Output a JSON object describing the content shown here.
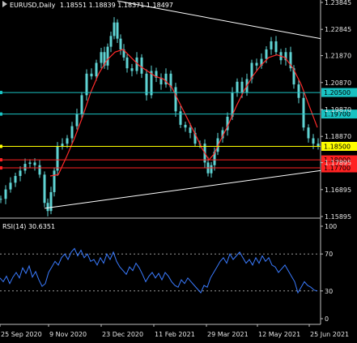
{
  "header": {
    "symbol_tf": "EURUSD,Daily",
    "ohlc": "1.18551 1.18839 1.18371 1.18497"
  },
  "colors": {
    "background": "#000000",
    "candle": "#5fd3d3",
    "ma": "#ff2a2a",
    "trendline": "#ffffff",
    "cyan_level": "#19c2c2",
    "yellow_level": "#ffff00",
    "red_level": "#ff2222",
    "rsi_line": "#3a7bff",
    "axis_text": "#e6e6e6",
    "separator": "#bfbfbf"
  },
  "chart_data": [
    {
      "type": "candlestick",
      "symbol": "EURUSD",
      "timeframe": "Daily",
      "x": [
        "25 Sep 2020",
        "9 Nov 2020",
        "23 Dec 2020",
        "11 Feb 2021",
        "29 Mar 2021",
        "12 May 2021",
        "25 Jun 2021"
      ],
      "y_ticks": [
        "1.23845",
        "1.22845",
        "1.21870",
        "1.20870",
        "1.19870",
        "1.18870",
        "1.17895",
        "1.16895",
        "1.15895"
      ],
      "ylim": [
        1.15895,
        1.23845
      ],
      "close_path": [
        [
          0,
          1.1655
        ],
        [
          6,
          1.169
        ],
        [
          12,
          1.1715
        ],
        [
          18,
          1.174
        ],
        [
          24,
          1.176
        ],
        [
          30,
          1.1785
        ],
        [
          36,
          1.179
        ],
        [
          42,
          1.178
        ],
        [
          48,
          1.1745
        ],
        [
          54,
          1.164
        ],
        [
          58,
          1.161
        ],
        [
          62,
          1.168
        ],
        [
          66,
          1.176
        ],
        [
          70,
          1.185
        ],
        [
          76,
          1.186
        ],
        [
          82,
          1.188
        ],
        [
          88,
          1.1925
        ],
        [
          94,
          1.197
        ],
        [
          100,
          1.204
        ],
        [
          106,
          1.212
        ],
        [
          112,
          1.211
        ],
        [
          118,
          1.216
        ],
        [
          124,
          1.22
        ],
        [
          128,
          1.215
        ],
        [
          132,
          1.222
        ],
        [
          136,
          1.226
        ],
        [
          140,
          1.231
        ],
        [
          144,
          1.225
        ],
        [
          148,
          1.221
        ],
        [
          152,
          1.218
        ],
        [
          156,
          1.214
        ],
        [
          162,
          1.213
        ],
        [
          168,
          1.218
        ],
        [
          174,
          1.212
        ],
        [
          180,
          1.204
        ],
        [
          186,
          1.213
        ],
        [
          192,
          1.2105
        ],
        [
          198,
          1.208
        ],
        [
          204,
          1.212
        ],
        [
          210,
          1.207
        ],
        [
          216,
          1.198
        ],
        [
          222,
          1.193
        ],
        [
          228,
          1.192
        ],
        [
          234,
          1.19
        ],
        [
          240,
          1.186
        ],
        [
          246,
          1.186
        ],
        [
          252,
          1.179
        ],
        [
          256,
          1.175
        ],
        [
          260,
          1.178
        ],
        [
          264,
          1.183
        ],
        [
          268,
          1.188
        ],
        [
          274,
          1.191
        ],
        [
          280,
          1.196
        ],
        [
          286,
          1.205
        ],
        [
          292,
          1.209
        ],
        [
          298,
          1.205
        ],
        [
          304,
          1.21
        ],
        [
          310,
          1.216
        ],
        [
          316,
          1.215
        ],
        [
          322,
          1.2175
        ],
        [
          328,
          1.221
        ],
        [
          334,
          1.224
        ],
        [
          340,
          1.22
        ],
        [
          346,
          1.217
        ],
        [
          352,
          1.22
        ],
        [
          358,
          1.214
        ],
        [
          362,
          1.208
        ],
        [
          368,
          1.203
        ],
        [
          374,
          1.192
        ],
        [
          380,
          1.188
        ],
        [
          386,
          1.186
        ],
        [
          392,
          1.185
        ]
      ],
      "ma_path": [
        [
          62,
          1.174
        ],
        [
          72,
          1.1745
        ],
        [
          82,
          1.181
        ],
        [
          92,
          1.188
        ],
        [
          102,
          1.196
        ],
        [
          112,
          1.205
        ],
        [
          122,
          1.212
        ],
        [
          132,
          1.217
        ],
        [
          142,
          1.22
        ],
        [
          152,
          1.221
        ],
        [
          162,
          1.218
        ],
        [
          172,
          1.215
        ],
        [
          182,
          1.213
        ],
        [
          192,
          1.211
        ],
        [
          202,
          1.21
        ],
        [
          212,
          1.207
        ],
        [
          222,
          1.201
        ],
        [
          232,
          1.195
        ],
        [
          242,
          1.189
        ],
        [
          250,
          1.184
        ],
        [
          258,
          1.18
        ],
        [
          264,
          1.182
        ],
        [
          272,
          1.187
        ],
        [
          282,
          1.193
        ],
        [
          292,
          1.2
        ],
        [
          302,
          1.206
        ],
        [
          312,
          1.211
        ],
        [
          322,
          1.215
        ],
        [
          332,
          1.218
        ],
        [
          342,
          1.219
        ],
        [
          352,
          1.218
        ],
        [
          362,
          1.214
        ],
        [
          372,
          1.208
        ],
        [
          382,
          1.2
        ],
        [
          392,
          1.192
        ]
      ],
      "trendlines": [
        {
          "name": "resistance",
          "from": [
            145,
            1.239
          ],
          "to": [
            396,
            1.225
          ]
        },
        {
          "name": "support",
          "from": [
            55,
            1.162
          ],
          "to": [
            396,
            1.176
          ]
        }
      ],
      "levels": [
        {
          "label": "1.20500",
          "value": 1.205,
          "color": "#19c2c2"
        },
        {
          "label": "1.19700",
          "value": 1.197,
          "color": "#19c2c2"
        },
        {
          "label": "1.18500",
          "value": 1.185,
          "color": "#ffff00"
        },
        {
          "label": "1.18000",
          "value": 1.18,
          "color": "#ff2222"
        },
        {
          "label": "1.17700",
          "value": 1.177,
          "color": "#ff2222"
        }
      ]
    },
    {
      "type": "line",
      "title": "RSI(14) 30.6351",
      "y_ticks": [
        "100",
        "70",
        "30",
        "0"
      ],
      "ylim": [
        0,
        100
      ],
      "levels": [
        70,
        30
      ],
      "series": [
        {
          "values": [
            [
              0,
              44
            ],
            [
              4,
              40
            ],
            [
              8,
              46
            ],
            [
              12,
              38
            ],
            [
              16,
              45
            ],
            [
              20,
              50
            ],
            [
              24,
              44
            ],
            [
              28,
              55
            ],
            [
              32,
              49
            ],
            [
              36,
              57
            ],
            [
              40,
              45
            ],
            [
              44,
              51
            ],
            [
              48,
              42
            ],
            [
              52,
              35
            ],
            [
              56,
              38
            ],
            [
              60,
              50
            ],
            [
              64,
              56
            ],
            [
              68,
              62
            ],
            [
              72,
              58
            ],
            [
              76,
              66
            ],
            [
              80,
              70
            ],
            [
              84,
              64
            ],
            [
              88,
              72
            ],
            [
              92,
              76
            ],
            [
              96,
              68
            ],
            [
              100,
              74
            ],
            [
              104,
              66
            ],
            [
              108,
              70
            ],
            [
              112,
              62
            ],
            [
              116,
              64
            ],
            [
              120,
              58
            ],
            [
              124,
              66
            ],
            [
              128,
              60
            ],
            [
              132,
              70
            ],
            [
              136,
              64
            ],
            [
              140,
              72
            ],
            [
              144,
              62
            ],
            [
              148,
              56
            ],
            [
              152,
              52
            ],
            [
              156,
              48
            ],
            [
              160,
              56
            ],
            [
              164,
              52
            ],
            [
              168,
              60
            ],
            [
              172,
              55
            ],
            [
              176,
              48
            ],
            [
              180,
              40
            ],
            [
              184,
              46
            ],
            [
              188,
              50
            ],
            [
              192,
              44
            ],
            [
              196,
              49
            ],
            [
              200,
              42
            ],
            [
              204,
              50
            ],
            [
              208,
              46
            ],
            [
              212,
              40
            ],
            [
              216,
              36
            ],
            [
              220,
              34
            ],
            [
              224,
              42
            ],
            [
              228,
              38
            ],
            [
              232,
              44
            ],
            [
              236,
              40
            ],
            [
              240,
              36
            ],
            [
              244,
              32
            ],
            [
              248,
              28
            ],
            [
              252,
              36
            ],
            [
              256,
              34
            ],
            [
              260,
              44
            ],
            [
              264,
              50
            ],
            [
              268,
              56
            ],
            [
              272,
              62
            ],
            [
              276,
              66
            ],
            [
              280,
              60
            ],
            [
              284,
              70
            ],
            [
              288,
              64
            ],
            [
              292,
              68
            ],
            [
              296,
              72
            ],
            [
              300,
              66
            ],
            [
              304,
              60
            ],
            [
              308,
              64
            ],
            [
              312,
              58
            ],
            [
              316,
              66
            ],
            [
              320,
              60
            ],
            [
              324,
              68
            ],
            [
              328,
              62
            ],
            [
              332,
              66
            ],
            [
              336,
              58
            ],
            [
              340,
              56
            ],
            [
              344,
              50
            ],
            [
              348,
              54
            ],
            [
              352,
              58
            ],
            [
              356,
              52
            ],
            [
              360,
              46
            ],
            [
              364,
              40
            ],
            [
              368,
              28
            ],
            [
              372,
              34
            ],
            [
              376,
              40
            ],
            [
              380,
              36
            ],
            [
              384,
              34
            ],
            [
              388,
              31
            ],
            [
              392,
              30
            ]
          ]
        }
      ]
    }
  ]
}
